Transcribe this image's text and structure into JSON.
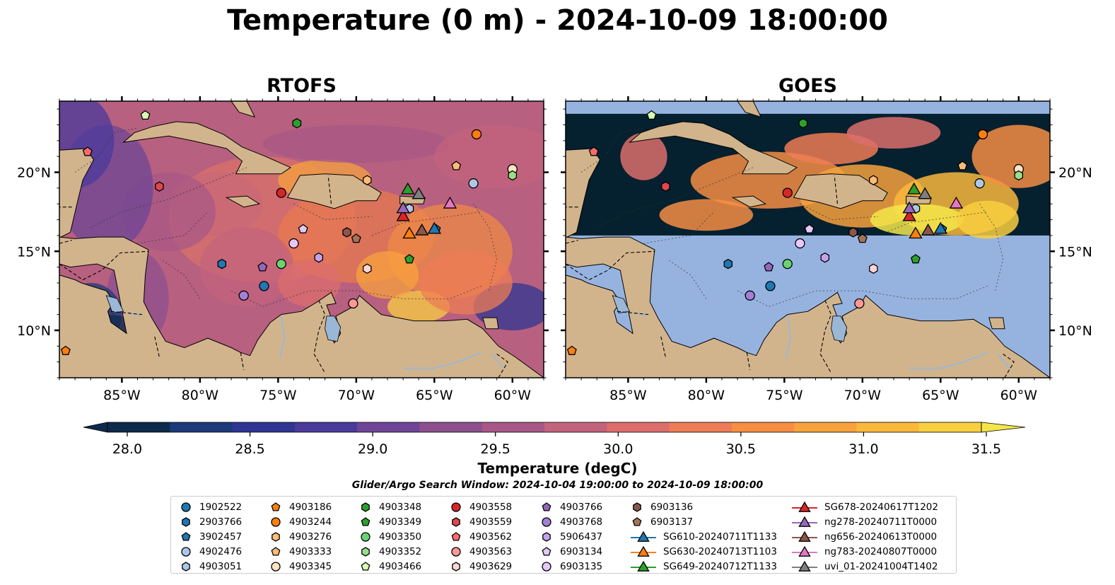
{
  "title": "Temperature (0 m) - 2024-10-09 18:00:00",
  "panels": [
    {
      "title": "RTOFS"
    },
    {
      "title": "GOES"
    }
  ],
  "axes": {
    "lon_ticks": [
      "85°W",
      "80°W",
      "75°W",
      "70°W",
      "65°W",
      "60°W"
    ],
    "lon_values": [
      -85,
      -80,
      -75,
      -70,
      -65,
      -60
    ],
    "lat_ticks": [
      "20°N",
      "15°N",
      "10°N"
    ],
    "lat_values": [
      20,
      15,
      10
    ],
    "lon_range": [
      -89,
      -58
    ],
    "lat_range": [
      7,
      24.5
    ]
  },
  "colorbar": {
    "label": "Temperature (degC)",
    "ticks": [
      "28.0",
      "28.5",
      "29.0",
      "29.5",
      "30.0",
      "30.5",
      "31.0",
      "31.5"
    ],
    "tick_values": [
      28.0,
      28.5,
      29.0,
      29.5,
      30.0,
      30.5,
      31.0,
      31.5
    ],
    "range": [
      28.0,
      31.5
    ],
    "colors": [
      "#0d2a4a",
      "#1c3a7a",
      "#2f3592",
      "#4a3a9b",
      "#6e4596",
      "#8d4f8e",
      "#a85886",
      "#c3637c",
      "#dc6e6c",
      "#ee7c56",
      "#f68e44",
      "#f8a23d",
      "#f9b83c",
      "#f8cf40",
      "#f4e64a"
    ],
    "extend": "both"
  },
  "search_window": "Glider/Argo Search Window: 2024-10-04 19:00:00 to 2024-10-09 18:00:00",
  "colors": {
    "land": "#d2b48c",
    "river": "#9ab8d6",
    "goes_nodata": "#96b3e0",
    "goes_cold": "#05202f"
  },
  "chart_data": [
    {
      "type": "scatter",
      "title": "RTOFS",
      "x_units": "degrees longitude",
      "y_units": "degrees latitude",
      "series": [
        {
          "name": "1902522",
          "marker": "circle",
          "color": "#1f77b4",
          "x": -75.9,
          "y": 12.8
        },
        {
          "name": "2903766",
          "marker": "hexagon",
          "color": "#1f77b4",
          "x": -78.6,
          "y": 14.2
        },
        {
          "name": "3902457",
          "marker": "pentagon",
          "color": "#1f77b4",
          "x": -64.9,
          "y": 16.4
        },
        {
          "name": "4902476",
          "marker": "circle",
          "color": "#aec7e8",
          "x": -62.5,
          "y": 19.3
        },
        {
          "name": "4903051",
          "marker": "hexagon",
          "color": "#aec7e8",
          "x": -66.6,
          "y": 17.7
        },
        {
          "name": "4903186",
          "marker": "pentagon",
          "color": "#ff7f0e",
          "x": -88.6,
          "y": 8.7
        },
        {
          "name": "4903244",
          "marker": "circle",
          "color": "#ff7f0e",
          "x": -62.3,
          "y": 22.4
        },
        {
          "name": "4903276",
          "marker": "hexagon",
          "color": "#ffbb78",
          "x": -69.3,
          "y": 19.5
        },
        {
          "name": "4903333",
          "marker": "pentagon",
          "color": "#ffbb78",
          "x": -63.6,
          "y": 20.4
        },
        {
          "name": "4903345",
          "marker": "circle",
          "color": "#ffe4c4",
          "x": -60.0,
          "y": 20.2
        },
        {
          "name": "4903348",
          "marker": "hexagon",
          "color": "#2ca02c",
          "x": -73.8,
          "y": 23.1
        },
        {
          "name": "4903349",
          "marker": "pentagon",
          "color": "#2ca02c",
          "x": -66.6,
          "y": 14.5
        },
        {
          "name": "4903350",
          "marker": "circle",
          "color": "#69d36e",
          "x": -74.8,
          "y": 14.2
        },
        {
          "name": "4903352",
          "marker": "hexagon",
          "color": "#98df8a",
          "x": -60.0,
          "y": 19.8
        },
        {
          "name": "4903466",
          "marker": "pentagon",
          "color": "#d7ffb4",
          "x": -83.5,
          "y": 23.6
        },
        {
          "name": "4903558",
          "marker": "circle",
          "color": "#d62728",
          "x": -74.8,
          "y": 18.7
        },
        {
          "name": "4903559",
          "marker": "hexagon",
          "color": "#e0464b",
          "x": -82.6,
          "y": 19.1
        },
        {
          "name": "4903562",
          "marker": "pentagon",
          "color": "#ff6b6b",
          "x": -87.2,
          "y": 21.3
        },
        {
          "name": "4903563",
          "marker": "circle",
          "color": "#ff9896",
          "x": -70.2,
          "y": 11.7
        },
        {
          "name": "4903629",
          "marker": "hexagon",
          "color": "#ffd6d6",
          "x": -69.3,
          "y": 13.9
        },
        {
          "name": "4903766",
          "marker": "pentagon",
          "color": "#9467bd",
          "x": -76.0,
          "y": 14.0
        },
        {
          "name": "4903768",
          "marker": "circle",
          "color": "#a37fd6",
          "x": -77.2,
          "y": 12.2
        },
        {
          "name": "5906437",
          "marker": "hexagon",
          "color": "#c5a3e8",
          "x": -72.4,
          "y": 14.6
        },
        {
          "name": "6903134",
          "marker": "pentagon",
          "color": "#e3c8f8",
          "x": -73.4,
          "y": 16.4
        },
        {
          "name": "6903135",
          "marker": "circle",
          "color": "#e8c8fa",
          "x": -74.0,
          "y": 15.5
        },
        {
          "name": "6903136",
          "marker": "hexagon",
          "color": "#8c564b",
          "x": -70.6,
          "y": 16.2
        },
        {
          "name": "6903137",
          "marker": "pentagon",
          "color": "#a77257",
          "x": -70.0,
          "y": 15.8
        },
        {
          "name": "SG610-20240711T1133",
          "marker": "triangle",
          "color": "#1f77b4",
          "x": -65.0,
          "y": 16.4
        },
        {
          "name": "SG630-20240713T1103",
          "marker": "triangle",
          "color": "#ff7f0e",
          "x": -66.6,
          "y": 16.1
        },
        {
          "name": "SG649-20240712T1133",
          "marker": "triangle",
          "color": "#2ca02c",
          "x": -66.7,
          "y": 18.9
        },
        {
          "name": "SG678-20240617T1202",
          "marker": "triangle",
          "color": "#d62728",
          "x": -67.0,
          "y": 17.2
        },
        {
          "name": "ng278-20240711T0000",
          "marker": "triangle",
          "color": "#9467bd",
          "x": -67.0,
          "y": 17.7
        },
        {
          "name": "ng656-20240613T0000",
          "marker": "triangle",
          "color": "#8c564b",
          "x": -65.8,
          "y": 16.3
        },
        {
          "name": "ng783-20240807T0000",
          "marker": "triangle",
          "color": "#e377c2",
          "x": -64.0,
          "y": 18.0
        },
        {
          "name": "uvi_01-20241004T1402",
          "marker": "triangle",
          "color": "#7f7f7f",
          "x": -66.0,
          "y": 18.6
        }
      ]
    },
    {
      "type": "scatter",
      "title": "GOES",
      "x_units": "degrees longitude",
      "y_units": "degrees latitude",
      "note_series": "same glider/argo positions as RTOFS panel"
    }
  ],
  "legend": [
    [
      "1902522",
      "2903766",
      "3902457",
      "4902476",
      "4903051"
    ],
    [
      "4903186",
      "4903244",
      "4903276",
      "4903333",
      "4903345"
    ],
    [
      "4903348",
      "4903349",
      "4903350",
      "4903352",
      "4903466"
    ],
    [
      "4903558",
      "4903559",
      "4903562",
      "4903563",
      "4903629"
    ],
    [
      "4903766",
      "4903768",
      "5906437",
      "6903134",
      "6903135"
    ],
    [
      "6903136",
      "6903137",
      "SG610-20240711T1133",
      "SG630-20240713T1103",
      "SG649-20240712T1133"
    ],
    [
      "SG678-20240617T1202",
      "ng278-20240711T0000",
      "ng656-20240613T0000",
      "ng783-20240807T0000",
      "uvi_01-20241004T1402"
    ]
  ]
}
